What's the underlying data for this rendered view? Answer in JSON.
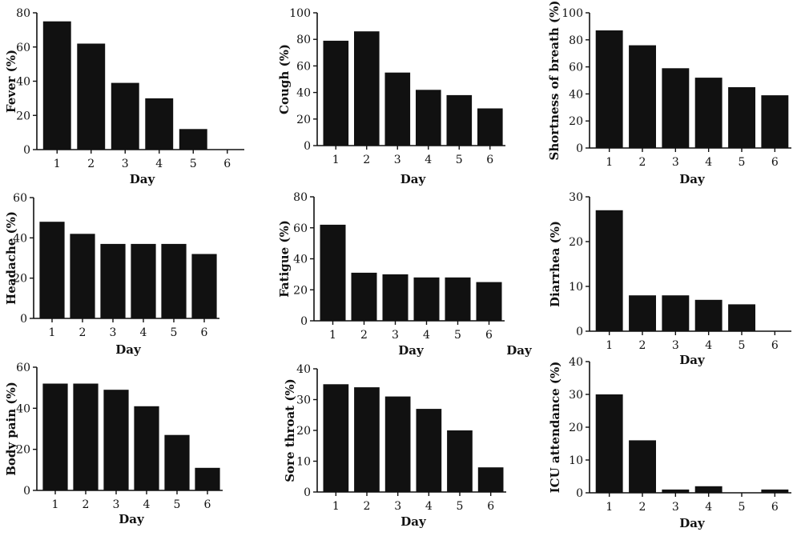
{
  "chart_data": [
    {
      "type": "bar",
      "categories": [
        "1",
        "2",
        "3",
        "4",
        "5",
        "6"
      ],
      "values": [
        75,
        62,
        39,
        30,
        12,
        0
      ],
      "ylim": [
        0,
        80
      ],
      "yticks": [
        0,
        20,
        40,
        60,
        80
      ],
      "xlabel": "Day",
      "ylabel": "Fever (%)",
      "bar_color": "#111111"
    },
    {
      "type": "bar",
      "categories": [
        "1",
        "2",
        "3",
        "4",
        "5",
        "6"
      ],
      "values": [
        79,
        86,
        55,
        42,
        38,
        28
      ],
      "ylim": [
        0,
        100
      ],
      "yticks": [
        0,
        20,
        40,
        60,
        80,
        100
      ],
      "xlabel": "Day",
      "ylabel": "Cough (%)",
      "bar_color": "#111111"
    },
    {
      "type": "bar",
      "categories": [
        "1",
        "2",
        "3",
        "4",
        "5",
        "6"
      ],
      "values": [
        87,
        76,
        59,
        52,
        45,
        39
      ],
      "ylim": [
        0,
        100
      ],
      "yticks": [
        0,
        20,
        40,
        60,
        80,
        100
      ],
      "xlabel": "Day",
      "ylabel": "Shortness of breath (%)",
      "bar_color": "#111111"
    },
    {
      "type": "bar",
      "categories": [
        "1",
        "2",
        "3",
        "4",
        "5",
        "6"
      ],
      "values": [
        48,
        42,
        37,
        37,
        37,
        32
      ],
      "ylim": [
        0,
        60
      ],
      "yticks": [
        0,
        20,
        40,
        60
      ],
      "xlabel": "Day",
      "ylabel": "Headache (%)",
      "bar_color": "#111111"
    },
    {
      "type": "bar",
      "categories": [
        "1",
        "2",
        "3",
        "4",
        "5",
        "6"
      ],
      "values": [
        62,
        31,
        30,
        28,
        28,
        25
      ],
      "ylim": [
        0,
        80
      ],
      "yticks": [
        0,
        20,
        40,
        60,
        80
      ],
      "xlabel": "Day",
      "ylabel": "Fatigue (%)",
      "bar_color": "#111111"
    },
    {
      "type": "bar",
      "categories": [
        "1",
        "2",
        "3",
        "4",
        "5",
        "6"
      ],
      "values": [
        27,
        8,
        8,
        7,
        6,
        0
      ],
      "ylim": [
        0,
        30
      ],
      "yticks": [
        0,
        10,
        20,
        30
      ],
      "xlabel": "Day",
      "ylabel": "Diarrhea (%)",
      "bar_color": "#111111"
    },
    {
      "type": "bar",
      "categories": [
        "1",
        "2",
        "3",
        "4",
        "5",
        "6"
      ],
      "values": [
        52,
        52,
        49,
        41,
        27,
        11
      ],
      "ylim": [
        0,
        60
      ],
      "yticks": [
        0,
        20,
        40,
        60
      ],
      "xlabel": "Day",
      "ylabel": "Body pain (%)",
      "bar_color": "#111111"
    },
    {
      "type": "bar",
      "categories": [
        "1",
        "2",
        "3",
        "4",
        "5",
        "6"
      ],
      "values": [
        35,
        34,
        31,
        27,
        20,
        8
      ],
      "ylim": [
        0,
        40
      ],
      "yticks": [
        0,
        10,
        20,
        30,
        40
      ],
      "xlabel": "Day",
      "ylabel": "Sore throat (%)",
      "bar_color": "#111111"
    },
    {
      "type": "bar",
      "categories": [
        "1",
        "2",
        "3",
        "4",
        "5",
        "6"
      ],
      "values": [
        30,
        16,
        1,
        2,
        0,
        1
      ],
      "ylim": [
        0,
        40
      ],
      "yticks": [
        0,
        10,
        20,
        30,
        40
      ],
      "xlabel": "Day",
      "ylabel": "ICU attendance (%)",
      "bar_color": "#111111"
    }
  ],
  "stray_labels": [
    "Day"
  ]
}
